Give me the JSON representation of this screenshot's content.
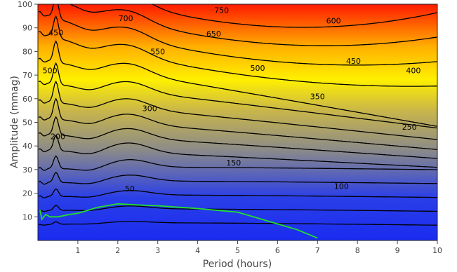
{
  "chart_data": {
    "type": "contour",
    "xlabel": "Period (hours)",
    "ylabel": "Amplitude (mmag)",
    "xlim": [
      0,
      10
    ],
    "ylim": [
      0,
      100
    ],
    "xticks": [
      1,
      2,
      3,
      4,
      5,
      6,
      7,
      8,
      9,
      10
    ],
    "yticks": [
      10,
      20,
      30,
      40,
      50,
      60,
      70,
      80,
      90,
      100
    ],
    "colorscale": [
      "#1a2cf0",
      "#8a8a8a",
      "#fff000",
      "#ff1a00"
    ],
    "contour_levels": [
      50,
      100,
      150,
      200,
      250,
      300,
      350,
      400,
      450,
      500,
      550,
      600,
      650,
      700,
      750
    ],
    "contour_labels": [
      {
        "text": "750",
        "x": 4.6,
        "y": 97.5
      },
      {
        "text": "700",
        "x": 2.2,
        "y": 94
      },
      {
        "text": "650",
        "x": 4.4,
        "y": 87.5
      },
      {
        "text": "600",
        "x": 7.4,
        "y": 93
      },
      {
        "text": "550",
        "x": 3.0,
        "y": 80
      },
      {
        "text": "500",
        "x": 5.5,
        "y": 73
      },
      {
        "text": "450",
        "x": 7.9,
        "y": 76
      },
      {
        "text": "400",
        "x": 9.4,
        "y": 72
      },
      {
        "text": "350",
        "x": 7.0,
        "y": 61
      },
      {
        "text": "300",
        "x": 2.8,
        "y": 56
      },
      {
        "text": "250",
        "x": 9.3,
        "y": 48
      },
      {
        "text": "200",
        "x": 0.5,
        "y": 44
      },
      {
        "text": "150",
        "x": 4.9,
        "y": 33
      },
      {
        "text": "100",
        "x": 7.6,
        "y": 23
      },
      {
        "text": "50",
        "x": 2.3,
        "y": 22
      },
      {
        "text": "450",
        "x": 0.45,
        "y": 88
      },
      {
        "text": "500",
        "x": 0.3,
        "y": 72
      }
    ],
    "threshold_curve": {
      "color": "#22e02a",
      "x": [
        0.05,
        0.1,
        0.2,
        0.3,
        0.5,
        0.8,
        1.0,
        1.5,
        2.0,
        2.5,
        3.0,
        4.0,
        5.0,
        5.5,
        6.0,
        6.5,
        7.0
      ],
      "y": [
        13,
        9,
        11,
        10,
        10,
        11,
        11.5,
        14,
        15.5,
        15,
        14.7,
        13.5,
        12,
        9.5,
        7,
        4.5,
        1
      ]
    }
  }
}
